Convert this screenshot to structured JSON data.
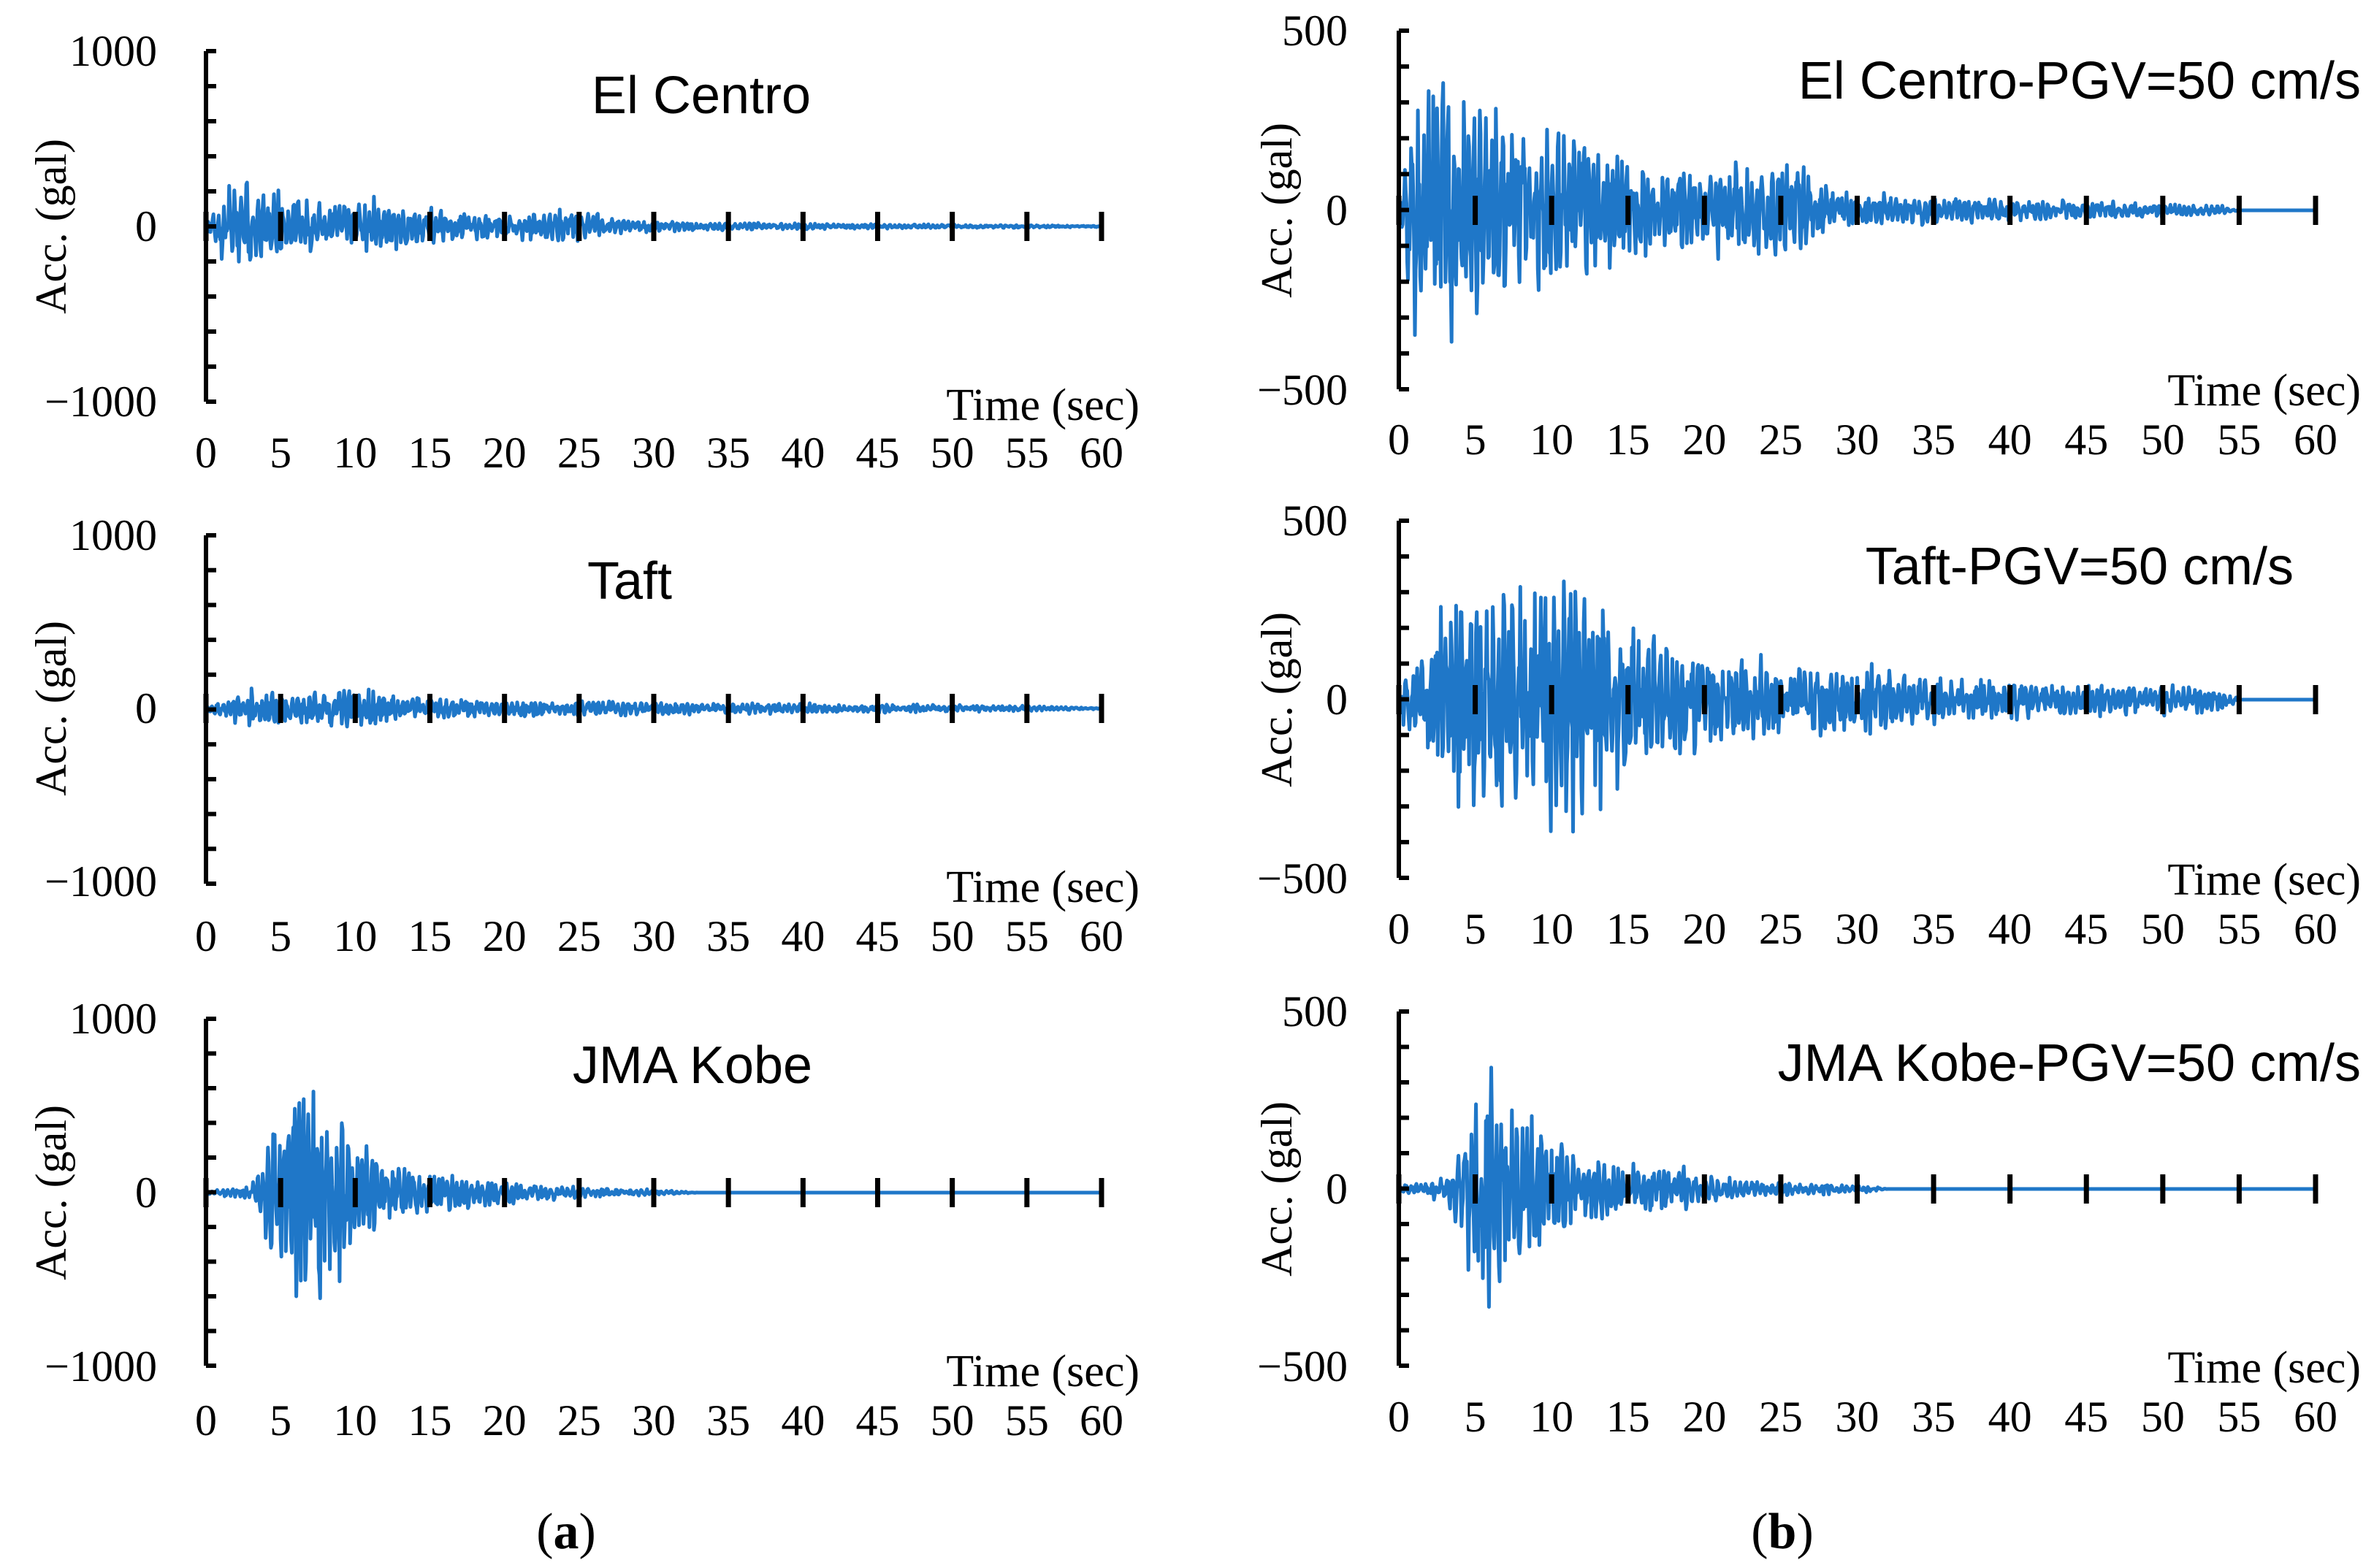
{
  "charts": [
    {
      "id": "a-elcentro",
      "type": "line",
      "title": "El Centro",
      "ylabel": "Acc. (gal)",
      "xlabel": "Time (sec)",
      "xlim": [
        0,
        60
      ],
      "ylim": [
        -1000,
        1000
      ],
      "xticks": [
        "0",
        "5",
        "10",
        "15",
        "20",
        "25",
        "30",
        "35",
        "40",
        "45",
        "50",
        "55",
        "60"
      ],
      "yticks": [
        {
          "value": 1000,
          "label": "1000"
        },
        {
          "value": 0,
          "label": "0"
        },
        {
          "value": -1000,
          "label": "−1000"
        }
      ],
      "envelope": [
        [
          0,
          20
        ],
        [
          1.5,
          340
        ],
        [
          3,
          260
        ],
        [
          5,
          240
        ],
        [
          8,
          160
        ],
        [
          12,
          190
        ],
        [
          15,
          120
        ],
        [
          20,
          85
        ],
        [
          25,
          110
        ],
        [
          26.5,
          90
        ],
        [
          28,
          45
        ],
        [
          35,
          25
        ],
        [
          45,
          15
        ],
        [
          55,
          10
        ],
        [
          60,
          5
        ]
      ],
      "duration": 60,
      "seed": 11,
      "color": "#1f77c8"
    },
    {
      "id": "a-taft",
      "type": "line",
      "title": "Taft",
      "ylabel": "Acc. (gal)",
      "xlabel": "Time (sec)",
      "xlim": [
        0,
        60
      ],
      "ylim": [
        -1000,
        1000
      ],
      "xticks": [
        "0",
        "5",
        "10",
        "15",
        "20",
        "25",
        "30",
        "35",
        "40",
        "45",
        "50",
        "55",
        "60"
      ],
      "yticks": [
        {
          "value": 1000,
          "label": "1000"
        },
        {
          "value": 0,
          "label": "0"
        },
        {
          "value": -1000,
          "label": "−1000"
        }
      ],
      "envelope": [
        [
          0,
          15
        ],
        [
          3,
          130
        ],
        [
          6,
          120
        ],
        [
          9,
          160
        ],
        [
          12,
          110
        ],
        [
          15,
          75
        ],
        [
          20,
          55
        ],
        [
          30,
          45
        ],
        [
          40,
          35
        ],
        [
          50,
          25
        ],
        [
          55,
          18
        ],
        [
          60,
          5
        ]
      ],
      "duration": 60,
      "seed": 23,
      "color": "#1f77c8"
    },
    {
      "id": "a-kobe",
      "type": "line",
      "title": "JMA Kobe",
      "ylabel": "Acc. (gal)",
      "xlabel": "Time (sec)",
      "xlim": [
        0,
        60
      ],
      "ylim": [
        -1000,
        1000
      ],
      "xticks": [
        "0",
        "5",
        "10",
        "15",
        "20",
        "25",
        "30",
        "35",
        "40",
        "45",
        "50",
        "55",
        "60"
      ],
      "yticks": [
        {
          "value": 1000,
          "label": "1000"
        },
        {
          "value": 0,
          "label": "0"
        },
        {
          "value": -1000,
          "label": "−1000"
        }
      ],
      "envelope": [
        [
          0,
          10
        ],
        [
          3,
          50
        ],
        [
          4.5,
          480
        ],
        [
          5.5,
          820
        ],
        [
          8,
          740
        ],
        [
          10,
          420
        ],
        [
          12,
          200
        ],
        [
          15,
          130
        ],
        [
          18,
          130
        ],
        [
          20,
          70
        ],
        [
          25,
          40
        ],
        [
          30,
          20
        ],
        [
          32,
          10
        ],
        [
          33,
          0
        ],
        [
          60,
          0
        ]
      ],
      "duration": 60,
      "seed": 37,
      "color": "#1f77c8"
    },
    {
      "id": "b-elcentro",
      "type": "line",
      "title": "El Centro-PGV=50 cm/s",
      "ylabel": "Acc. (gal)",
      "xlabel": "Time (sec)",
      "xlim": [
        0,
        60
      ],
      "ylim": [
        -500,
        500
      ],
      "xticks": [
        "0",
        "5",
        "10",
        "15",
        "20",
        "25",
        "30",
        "35",
        "40",
        "45",
        "50",
        "55",
        "60"
      ],
      "yticks": [
        {
          "value": 500,
          "label": "500"
        },
        {
          "value": 0,
          "label": "0"
        },
        {
          "value": -500,
          "label": "−500"
        }
      ],
      "envelope": [
        [
          0,
          30
        ],
        [
          1,
          380
        ],
        [
          2,
          490
        ],
        [
          3,
          410
        ],
        [
          5,
          360
        ],
        [
          9,
          270
        ],
        [
          12,
          280
        ],
        [
          15,
          180
        ],
        [
          20,
          130
        ],
        [
          24,
          170
        ],
        [
          26.5,
          200
        ],
        [
          28,
          70
        ],
        [
          33,
          50
        ],
        [
          40,
          35
        ],
        [
          50,
          25
        ],
        [
          54,
          15
        ],
        [
          55,
          0
        ],
        [
          60,
          0
        ]
      ],
      "duration": 60,
      "seed": 51,
      "color": "#1f77c8"
    },
    {
      "id": "b-taft",
      "type": "line",
      "title": "Taft-PGV=50 cm/s",
      "ylabel": "Acc. (gal)",
      "xlabel": "Time (sec)",
      "xlim": [
        0,
        60
      ],
      "ylim": [
        -500,
        500
      ],
      "xticks": [
        "0",
        "5",
        "10",
        "15",
        "20",
        "25",
        "30",
        "35",
        "40",
        "45",
        "50",
        "55",
        "60"
      ],
      "yticks": [
        {
          "value": 500,
          "label": "500"
        },
        {
          "value": 0,
          "label": "0"
        },
        {
          "value": -500,
          "label": "−500"
        }
      ],
      "envelope": [
        [
          0,
          60
        ],
        [
          3,
          300
        ],
        [
          4,
          400
        ],
        [
          7,
          420
        ],
        [
          9.5,
          480
        ],
        [
          12,
          380
        ],
        [
          15,
          260
        ],
        [
          20,
          160
        ],
        [
          25,
          130
        ],
        [
          30,
          110
        ],
        [
          35,
          90
        ],
        [
          40,
          70
        ],
        [
          50,
          50
        ],
        [
          54,
          40
        ],
        [
          55,
          0
        ],
        [
          60,
          0
        ]
      ],
      "duration": 60,
      "seed": 67,
      "color": "#1f77c8"
    },
    {
      "id": "b-kobe",
      "type": "line",
      "title": "JMA Kobe-PGV=50 cm/s",
      "ylabel": "Acc. (gal)",
      "xlabel": "Time (sec)",
      "xlim": [
        0,
        60
      ],
      "ylim": [
        -500,
        500
      ],
      "xticks": [
        "0",
        "5",
        "10",
        "15",
        "20",
        "25",
        "30",
        "35",
        "40",
        "45",
        "50",
        "55",
        "60"
      ],
      "yticks": [
        {
          "value": 500,
          "label": "500"
        },
        {
          "value": 0,
          "label": "0"
        },
        {
          "value": -500,
          "label": "−500"
        }
      ],
      "envelope": [
        [
          0,
          10
        ],
        [
          3,
          40
        ],
        [
          4.5,
          260
        ],
        [
          5.5,
          440
        ],
        [
          8,
          330
        ],
        [
          10,
          200
        ],
        [
          12,
          110
        ],
        [
          15,
          80
        ],
        [
          18,
          85
        ],
        [
          20,
          45
        ],
        [
          25,
          25
        ],
        [
          31,
          12
        ],
        [
          32,
          0
        ],
        [
          60,
          0
        ]
      ],
      "duration": 60,
      "seed": 83,
      "color": "#1f77c8"
    }
  ],
  "panel_labels": {
    "a": {
      "open": "(",
      "letter": "a",
      "close": ")"
    },
    "b": {
      "open": "(",
      "letter": "b",
      "close": ")"
    }
  }
}
